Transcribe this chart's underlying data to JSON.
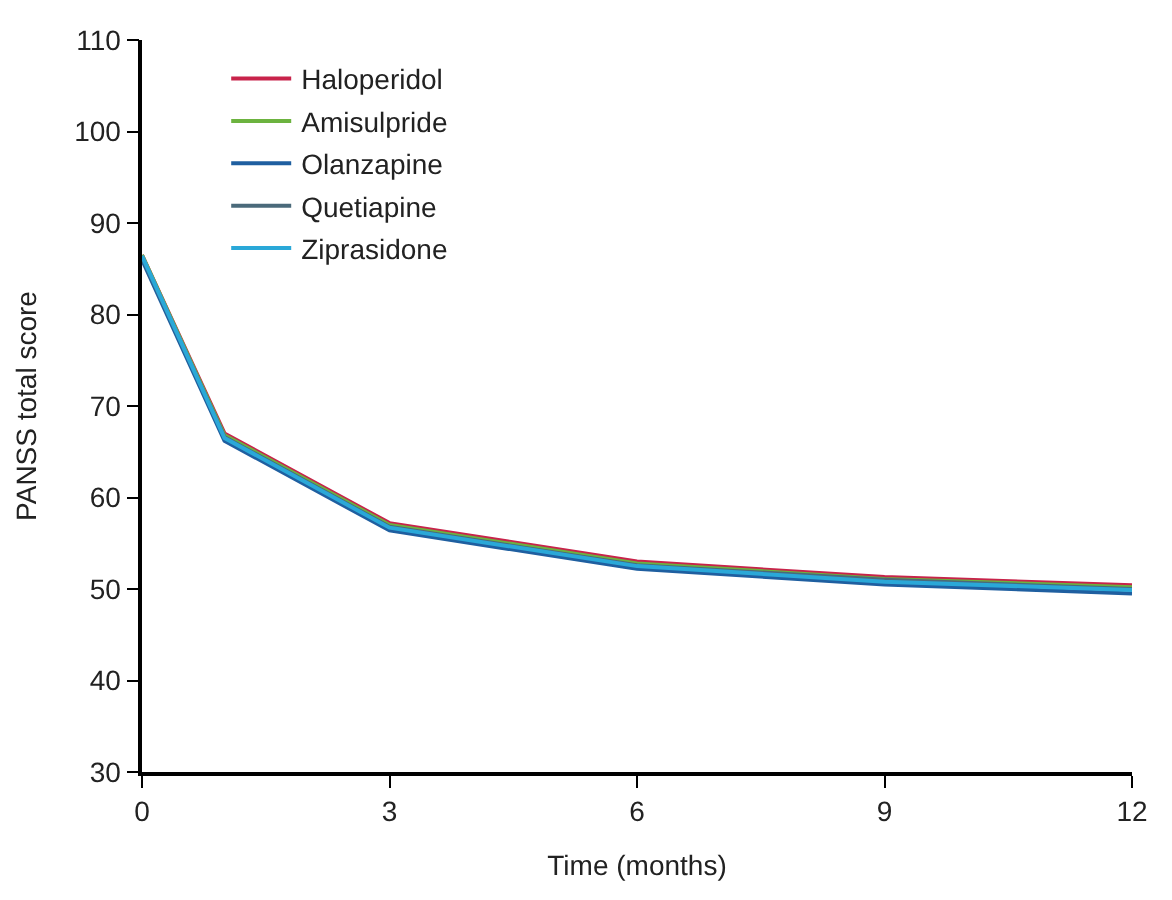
{
  "chart_data": {
    "type": "line",
    "xlabel": "Time (months)",
    "ylabel": "PANSS total score",
    "x": [
      0,
      1,
      3,
      6,
      9,
      12
    ],
    "xlim": [
      0,
      12
    ],
    "xticks": [
      0,
      3,
      6,
      9,
      12
    ],
    "ylim": [
      30,
      110
    ],
    "yticks": [
      30,
      40,
      50,
      60,
      70,
      80,
      90,
      100,
      110
    ],
    "legend": "top left",
    "marker": "none",
    "line_style": "solid",
    "series": [
      {
        "name": "Haloperidol",
        "color": "#c8234a",
        "values": [
          86.5,
          67,
          57.2,
          53,
          51.3,
          50.4
        ]
      },
      {
        "name": "Amisulpride",
        "color": "#6cb33f",
        "values": [
          86.5,
          66.8,
          57,
          52.8,
          51.1,
          50.2
        ]
      },
      {
        "name": "Olanzapine",
        "color": "#1f5fa0",
        "values": [
          86,
          66.2,
          56.4,
          52.2,
          50.5,
          49.5
        ]
      },
      {
        "name": "Quetiapine",
        "color": "#4a6a7a",
        "values": [
          86.3,
          66.6,
          56.8,
          52.6,
          51,
          50
        ]
      },
      {
        "name": "Ziprasidone",
        "color": "#2aa8d8",
        "values": [
          86.4,
          66.5,
          56.7,
          52.5,
          50.8,
          49.9
        ]
      }
    ]
  }
}
